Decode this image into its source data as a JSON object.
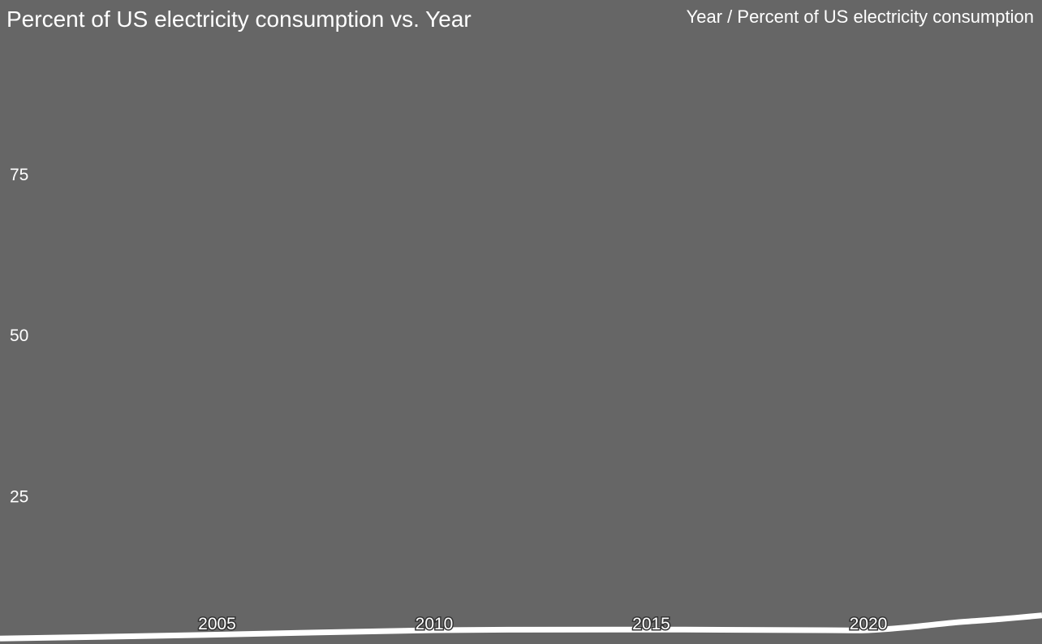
{
  "chart_data": {
    "type": "line",
    "title": "Percent of US electricity consumption vs. Year",
    "subtitle": "Year / Percent of US electricity consumption",
    "xlabel": "",
    "ylabel": "",
    "x": [
      2000,
      2005,
      2010,
      2015,
      2019,
      2020,
      2021,
      2022,
      2023,
      2024
    ],
    "y": [
      2.8,
      3.4,
      4.1,
      4.2,
      4.1,
      4.1,
      4.6,
      5.3,
      5.8,
      6.4
    ],
    "xlim": [
      2000,
      2024
    ],
    "ylim": [
      0,
      102
    ],
    "xticks": [
      "2005",
      "2010",
      "2015",
      "2020"
    ],
    "yticks": [
      "25",
      "50",
      "75"
    ],
    "grid": false,
    "line_color": "#ffffff",
    "background": "#666666"
  }
}
